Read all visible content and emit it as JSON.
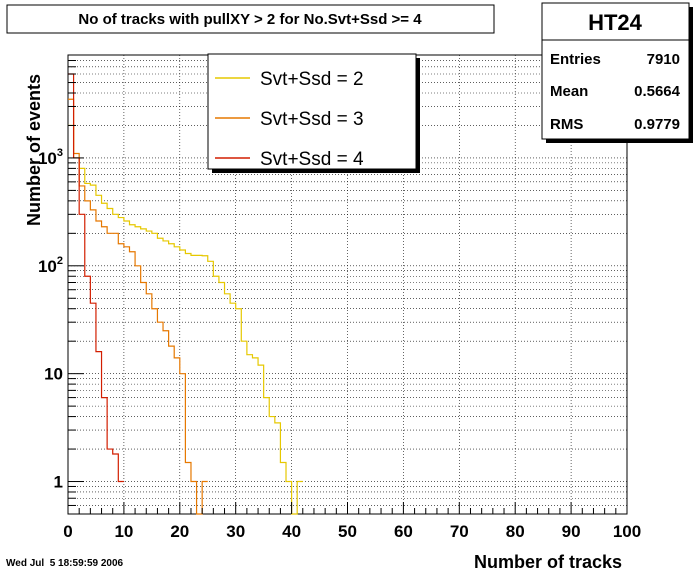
{
  "chart_data": {
    "type": "line",
    "title": "No of tracks with pullXY > 2 for No.Svt+Ssd >= 4",
    "xlabel": "Number of tracks",
    "ylabel": "Number of events",
    "xlim": [
      0,
      100
    ],
    "ylim": [
      0.5,
      9000
    ],
    "yscale": "log",
    "grid": true,
    "legend_position": "top-center",
    "x_ticks": [
      "0",
      "10",
      "20",
      "30",
      "40",
      "50",
      "60",
      "70",
      "80",
      "90",
      "100"
    ],
    "y_ticks": [
      {
        "value": 1,
        "label": "1"
      },
      {
        "value": 10,
        "label": "10"
      },
      {
        "value": 100,
        "label": "10²"
      },
      {
        "value": 1000,
        "label": "10³"
      }
    ],
    "series": [
      {
        "name": "Svt+Ssd = 2",
        "color": "#e6c800",
        "values": [
          2000,
          1000,
          800,
          580,
          560,
          450,
          380,
          340,
          300,
          280,
          260,
          240,
          230,
          220,
          210,
          200,
          180,
          170,
          160,
          150,
          140,
          130,
          125,
          125,
          124,
          110,
          80,
          70,
          55,
          45,
          40,
          20,
          15,
          14,
          12,
          6,
          4,
          3.5,
          1.5,
          1.0,
          0.5,
          1.0
        ]
      },
      {
        "name": "Svt+Ssd = 3",
        "color": "#e67800",
        "values": [
          3500,
          1100,
          550,
          400,
          330,
          260,
          230,
          200,
          200,
          160,
          150,
          135,
          100,
          70,
          55,
          40,
          30,
          25,
          18,
          14,
          10,
          1.5,
          1.0,
          0.5,
          1.0
        ]
      },
      {
        "name": "Svt+Ssd = 4",
        "color": "#d21e00",
        "values": [
          6000,
          1000,
          300,
          80,
          45,
          16,
          6,
          2,
          1.8,
          1.0
        ]
      }
    ],
    "stats": {
      "name": "HT24",
      "entries_label": "Entries",
      "entries": "7910",
      "mean_label": "Mean",
      "mean": "0.5664",
      "rms_label": "RMS",
      "rms": "0.9779"
    },
    "footer_date": "Wed Jul  5 18:59:59 2006"
  }
}
